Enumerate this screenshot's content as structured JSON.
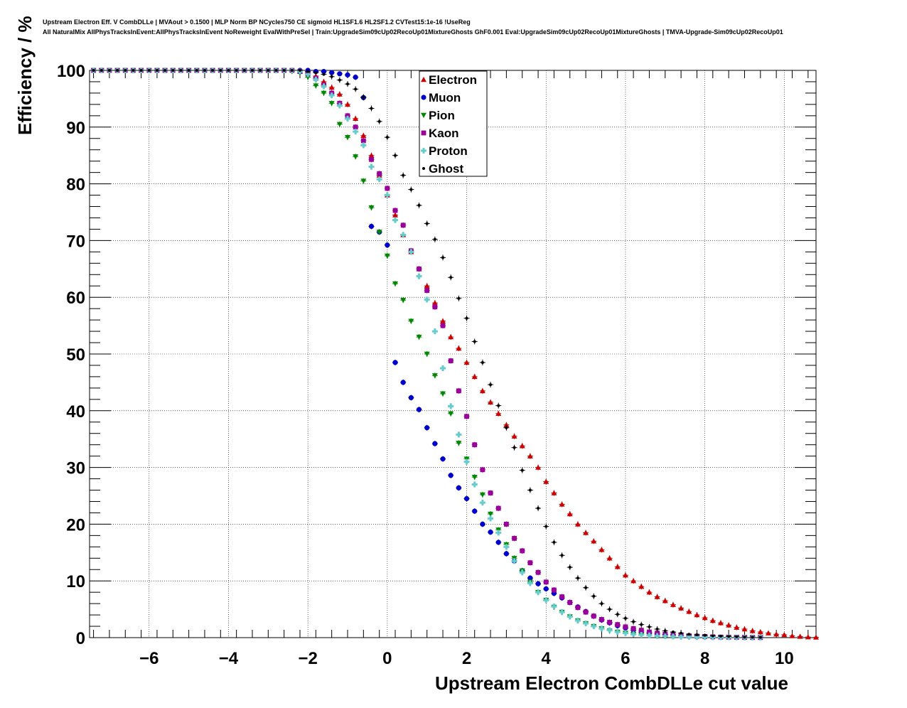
{
  "header": {
    "line1": "Upstream Electron Eff. V CombDLLe | MVAout > 0.1500 | MLP Norm BP NCycles750 CE sigmoid HL1SF1.6 HL2SF1.2 CVTest15:1e-16 !UseReg",
    "line2": "All NaturalMix AllPhysTracksInEvent:AllPhysTracksInEvent NoReweight EvalWithPreSel | Train:UpgradeSim09cUp02RecoUp01MixtureGhosts GhF0.001 Eval:UpgradeSim09cUp02RecoUp01MixtureGhosts | TMVA-Upgrade-Sim09cUp02RecoUp01"
  },
  "chart_data": {
    "type": "scatter",
    "title": "",
    "xlabel": "Upstream Electron CombDLLe cut value",
    "ylabel": "Efficiency / %",
    "xlim": [
      -7.5,
      10.8
    ],
    "ylim": [
      0,
      100
    ],
    "xticks": [
      -6,
      -4,
      -2,
      0,
      2,
      4,
      6,
      8,
      10
    ],
    "xtick_labels": [
      "−6",
      "−4",
      "−2",
      "0",
      "2",
      "4",
      "6",
      "8",
      "10"
    ],
    "yticks": [
      0,
      10,
      20,
      30,
      40,
      50,
      60,
      70,
      80,
      90,
      100
    ],
    "grid": true,
    "legend_position": "top-center",
    "series": [
      {
        "name": "Electron",
        "color": "#cc0000",
        "marker": "triangle-up",
        "x": [
          -2,
          -1.8,
          -1.6,
          -1.4,
          -1.2,
          -1,
          -0.8,
          -0.6,
          -0.4,
          -0.2,
          0,
          0.2,
          0.4,
          0.6,
          0.8,
          1,
          1.2,
          1.4,
          1.6,
          1.8,
          2,
          2.2,
          2.4,
          2.6,
          2.8,
          3,
          3.2,
          3.4,
          3.6,
          3.8,
          4,
          4.2,
          4.4,
          4.6,
          4.8,
          5,
          5.2,
          5.4,
          5.6,
          5.8,
          6,
          6.2,
          6.4,
          6.6,
          6.8,
          7,
          7.2,
          7.4,
          7.6,
          7.8,
          8,
          8.2,
          8.4,
          8.6,
          8.8,
          9,
          9.2,
          9.4,
          9.6,
          9.8,
          10,
          10.2,
          10.4,
          10.6,
          10.8
        ],
        "y": [
          99.6,
          99.0,
          98.0,
          97.0,
          95.8,
          94.0,
          91.5,
          88.5,
          85.0,
          81.5,
          78.0,
          74.5,
          71.0,
          68.0,
          65.0,
          62.0,
          59.0,
          55.8,
          53.0,
          51.0,
          48.5,
          46.0,
          43.5,
          41.5,
          39.5,
          37.5,
          35.5,
          33.8,
          32.0,
          30.0,
          27.5,
          25.5,
          23.5,
          21.8,
          20.0,
          18.5,
          17.0,
          15.5,
          14.0,
          12.5,
          11.0,
          10.0,
          9.0,
          8.0,
          7.2,
          6.5,
          5.8,
          5.2,
          4.6,
          4.0,
          3.5,
          3.0,
          2.6,
          2.2,
          1.8,
          1.5,
          1.2,
          1.0,
          0.8,
          0.6,
          0.5,
          0.3,
          0.2,
          0.1,
          0.05
        ]
      },
      {
        "name": "Muon",
        "color": "#0000cc",
        "marker": "circle",
        "x": [
          -7.4,
          -7.2,
          -7,
          -6.8,
          -6.6,
          -6.4,
          -6.2,
          -6,
          -5.8,
          -5.6,
          -5.4,
          -5.2,
          -5,
          -4.8,
          -4.6,
          -4.4,
          -4.2,
          -4,
          -3.8,
          -3.6,
          -3.4,
          -3.2,
          -3,
          -2.8,
          -2.6,
          -2.4,
          -2.2,
          -2,
          -1.8,
          -1.6,
          -1.4,
          -1.2,
          -1,
          -0.8,
          -0.6,
          -0.4,
          -0.2,
          0,
          0.2,
          0.4,
          0.6,
          0.8,
          1,
          1.2,
          1.4,
          1.6,
          1.8,
          2,
          2.2,
          2.4,
          2.6,
          2.8,
          3,
          3.2,
          3.4,
          3.6,
          3.8,
          4,
          4.2,
          4.4,
          4.6,
          4.8,
          5,
          5.2,
          5.4,
          5.6,
          5.8,
          6,
          6.2,
          6.4,
          6.6,
          6.8,
          7,
          7.2,
          7.4,
          7.6,
          7.8,
          8,
          8.2,
          8.4,
          8.6,
          8.8,
          9,
          9.2,
          9.4
        ],
        "y": [
          100,
          100,
          100,
          100,
          100,
          100,
          100,
          100,
          100,
          100,
          100,
          100,
          100,
          100,
          100,
          100,
          100,
          100,
          100,
          100,
          100,
          100,
          100,
          100,
          100,
          100,
          100,
          100,
          99.8,
          99.8,
          99.6,
          99.4,
          99.2,
          98.8,
          95.2,
          72.5,
          71.5,
          69.2,
          48.5,
          45.0,
          42.3,
          40.2,
          37.0,
          34.2,
          31.5,
          28.6,
          26.4,
          24.5,
          22.3,
          20.0,
          18.6,
          16.8,
          14.8,
          13.5,
          11.8,
          10.5,
          9.5,
          8.6,
          7.8,
          7.0,
          6.2,
          5.4,
          4.6,
          3.8,
          3.1,
          2.6,
          2.1,
          1.7,
          1.3,
          1.0,
          0.8,
          0.6,
          0.5,
          0.4,
          0.3,
          0.25,
          0.2,
          0.15,
          0.1,
          0.08,
          0.05,
          0.04,
          0.03,
          0.02,
          0.01
        ]
      },
      {
        "name": "Pion",
        "color": "#008800",
        "marker": "triangle-down",
        "x": [
          -7.4,
          -7.2,
          -7,
          -6.8,
          -6.6,
          -6.4,
          -6.2,
          -6,
          -5.8,
          -5.6,
          -5.4,
          -5.2,
          -5,
          -4.8,
          -4.6,
          -4.4,
          -4.2,
          -4,
          -3.8,
          -3.6,
          -3.4,
          -3.2,
          -3,
          -2.8,
          -2.6,
          -2.4,
          -2.2,
          -2,
          -1.8,
          -1.6,
          -1.4,
          -1.2,
          -1,
          -0.8,
          -0.6,
          -0.4,
          -0.2,
          0,
          0.2,
          0.4,
          0.6,
          0.8,
          1,
          1.2,
          1.4,
          1.6,
          1.8,
          2,
          2.2,
          2.4,
          2.6,
          2.8,
          3,
          3.2,
          3.4,
          3.6,
          3.8,
          4,
          4.2,
          4.4,
          4.6,
          4.8,
          5,
          5.2,
          5.4,
          5.6,
          5.8,
          6,
          6.2,
          6.4,
          6.6,
          6.8,
          7,
          7.2,
          7.4,
          7.6,
          7.8,
          8,
          8.2,
          8.4,
          8.6,
          8.8,
          9,
          9.2,
          9.4
        ],
        "y": [
          100,
          100,
          100,
          100,
          100,
          100,
          100,
          100,
          100,
          100,
          100,
          100,
          100,
          100,
          100,
          100,
          100,
          100,
          100,
          100,
          100,
          100,
          100,
          100,
          100,
          99.8,
          99.5,
          98.8,
          97.3,
          96.0,
          94.2,
          90.5,
          88.2,
          84.8,
          80.5,
          75.8,
          71.5,
          67.3,
          62.4,
          59.5,
          55.8,
          53.0,
          50.0,
          46.2,
          43.0,
          39.5,
          34.3,
          31.5,
          28.3,
          25.2,
          21.8,
          19.0,
          16.4,
          14.0,
          11.8,
          9.8,
          8.0,
          6.6,
          5.4,
          4.5,
          3.7,
          3.0,
          2.5,
          2.0,
          1.6,
          1.2,
          1.0,
          0.8,
          0.6,
          0.45,
          0.35,
          0.25,
          0.2,
          0.15,
          0.12,
          0.1,
          0.08,
          0.06,
          0.05,
          0.04,
          0.03,
          0.02,
          0.02,
          0.01,
          0.01
        ]
      },
      {
        "name": "Kaon",
        "color": "#990099",
        "marker": "square",
        "x": [
          -7.4,
          -7.2,
          -7,
          -6.8,
          -6.6,
          -6.4,
          -6.2,
          -6,
          -5.8,
          -5.6,
          -5.4,
          -5.2,
          -5,
          -4.8,
          -4.6,
          -4.4,
          -4.2,
          -4,
          -3.8,
          -3.6,
          -3.4,
          -3.2,
          -3,
          -2.8,
          -2.6,
          -2.4,
          -2.2,
          -2,
          -1.8,
          -1.6,
          -1.4,
          -1.2,
          -1,
          -0.8,
          -0.6,
          -0.4,
          -0.2,
          0,
          0.2,
          0.4,
          0.6,
          0.8,
          1,
          1.2,
          1.4,
          1.6,
          1.8,
          2,
          2.2,
          2.4,
          2.6,
          2.8,
          3,
          3.2,
          3.4,
          3.6,
          3.8,
          4,
          4.2,
          4.4,
          4.6,
          4.8,
          5,
          5.2,
          5.4,
          5.6,
          5.8,
          6,
          6.2,
          6.4,
          6.6,
          6.8,
          7,
          7.2,
          7.4,
          7.6,
          7.8,
          8,
          8.2,
          8.4,
          8.6,
          8.8,
          9,
          9.2,
          9.4
        ],
        "y": [
          100,
          100,
          100,
          100,
          100,
          100,
          100,
          100,
          100,
          100,
          100,
          100,
          100,
          100,
          100,
          100,
          100,
          100,
          100,
          100,
          100,
          100,
          100,
          100,
          100,
          100,
          99.8,
          99.4,
          98.6,
          97.4,
          96.0,
          94.2,
          92.0,
          90.0,
          87.6,
          84.3,
          81.8,
          79.2,
          75.3,
          72.7,
          68.2,
          65.0,
          61.2,
          58.3,
          55.0,
          48.8,
          43.5,
          39.0,
          34.0,
          29.6,
          25.5,
          22.8,
          20.0,
          17.5,
          15.3,
          13.2,
          11.5,
          9.8,
          8.4,
          7.2,
          6.2,
          5.3,
          4.5,
          3.8,
          3.2,
          2.7,
          2.3,
          1.9,
          1.6,
          1.3,
          1.0,
          0.8,
          0.6,
          0.5,
          0.4,
          0.3,
          0.25,
          0.2,
          0.15,
          0.1,
          0.08,
          0.06,
          0.05,
          0.03,
          0.02
        ]
      },
      {
        "name": "Proton",
        "color": "#66cccc",
        "marker": "cross",
        "x": [
          -7.4,
          -7.2,
          -7,
          -6.8,
          -6.6,
          -6.4,
          -6.2,
          -6,
          -5.8,
          -5.6,
          -5.4,
          -5.2,
          -5,
          -4.8,
          -4.6,
          -4.4,
          -4.2,
          -4,
          -3.8,
          -3.6,
          -3.4,
          -3.2,
          -3,
          -2.8,
          -2.6,
          -2.4,
          -2.2,
          -2,
          -1.8,
          -1.6,
          -1.4,
          -1.2,
          -1,
          -0.8,
          -0.6,
          -0.4,
          -0.2,
          0,
          0.2,
          0.4,
          0.6,
          0.8,
          1,
          1.2,
          1.4,
          1.6,
          1.8,
          2,
          2.2,
          2.4,
          2.6,
          2.8,
          3,
          3.2,
          3.4,
          3.6,
          3.8,
          4,
          4.2,
          4.4,
          4.6,
          4.8,
          5,
          5.2,
          5.4,
          5.6,
          5.8,
          6,
          6.2,
          6.4,
          6.6,
          6.8,
          7,
          7.2,
          7.4,
          7.6,
          7.8,
          8,
          8.2,
          8.4,
          8.6,
          8.8,
          9,
          9.2,
          9.4
        ],
        "y": [
          100,
          100,
          100,
          100,
          100,
          100,
          100,
          100,
          100,
          100,
          100,
          100,
          100,
          100,
          100,
          100,
          100,
          100,
          100,
          100,
          100,
          100,
          100,
          100,
          100,
          100,
          99.8,
          99.3,
          98.4,
          97.2,
          95.6,
          93.8,
          91.5,
          89.2,
          86.8,
          83.0,
          80.8,
          78.0,
          73.6,
          71.0,
          68.0,
          63.7,
          59.6,
          54.0,
          47.5,
          40.8,
          35.8,
          31.0,
          27.0,
          23.8,
          21.0,
          18.5,
          16.0,
          13.5,
          11.5,
          9.6,
          8.0,
          6.6,
          5.5,
          4.5,
          3.7,
          3.0,
          2.5,
          2.0,
          1.6,
          1.3,
          1.0,
          0.8,
          0.6,
          0.5,
          0.4,
          0.3,
          0.25,
          0.2,
          0.15,
          0.12,
          0.1,
          0.08,
          0.06,
          0.05,
          0.04,
          0.03,
          0.02,
          0.01,
          0.01
        ]
      },
      {
        "name": "Ghost",
        "color": "#000000",
        "marker": "dot",
        "x": [
          -7.4,
          -7.2,
          -7,
          -6.8,
          -6.6,
          -6.4,
          -6.2,
          -6,
          -5.8,
          -5.6,
          -5.4,
          -5.2,
          -5,
          -4.8,
          -4.6,
          -4.4,
          -4.2,
          -4,
          -3.8,
          -3.6,
          -3.4,
          -3.2,
          -3,
          -2.8,
          -2.6,
          -2.4,
          -2.2,
          -2,
          -1.8,
          -1.6,
          -1.4,
          -1.2,
          -1,
          -0.8,
          -0.6,
          -0.4,
          -0.2,
          0,
          0.2,
          0.4,
          0.6,
          0.8,
          1,
          1.2,
          1.4,
          1.6,
          1.8,
          2,
          2.2,
          2.4,
          2.6,
          2.8,
          3,
          3.2,
          3.4,
          3.6,
          3.8,
          4,
          4.2,
          4.4,
          4.6,
          4.8,
          5,
          5.2,
          5.4,
          5.6,
          5.8,
          6,
          6.2,
          6.4,
          6.6,
          6.8,
          7,
          7.2,
          7.4,
          7.6,
          7.8,
          8,
          8.2,
          8.4,
          8.6,
          8.8,
          9,
          9.2,
          9.4
        ],
        "y": [
          100,
          100,
          100,
          100,
          100,
          100,
          100,
          100,
          100,
          100,
          100,
          100,
          100,
          100,
          100,
          100,
          100,
          100,
          100,
          100,
          100,
          100,
          100,
          100,
          100,
          100,
          100,
          99.8,
          99.6,
          99.3,
          98.9,
          98.3,
          97.6,
          96.7,
          95.3,
          93.3,
          91.0,
          88.2,
          85.0,
          81.5,
          79.0,
          76.2,
          73.0,
          70.2,
          67.0,
          63.5,
          59.8,
          56.3,
          52.2,
          48.5,
          44.6,
          40.9,
          37.0,
          33.5,
          29.5,
          26.0,
          22.8,
          19.6,
          16.8,
          14.5,
          12.4,
          10.5,
          8.8,
          7.3,
          6.0,
          5.0,
          4.1,
          3.4,
          2.8,
          2.3,
          1.9,
          1.5,
          1.2,
          1.0,
          0.8,
          0.6,
          0.5,
          0.4,
          0.3,
          0.25,
          0.2,
          0.15,
          0.1,
          0.08,
          0.05
        ]
      }
    ]
  }
}
